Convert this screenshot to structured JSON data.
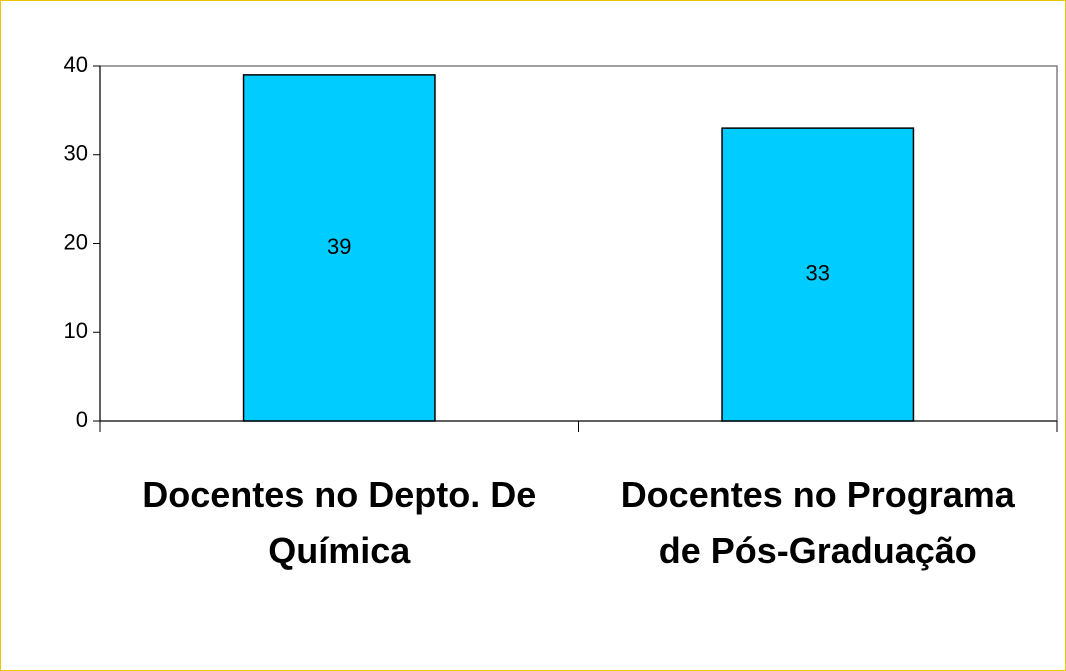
{
  "chart_data": {
    "type": "bar",
    "categories": [
      "Docentes no Depto. De Química",
      "Docentes no Programa de Pós-Graduação"
    ],
    "values": [
      39,
      33
    ],
    "color": "#00ccff",
    "ylim": [
      0,
      40
    ],
    "yticks": [
      0,
      10,
      20,
      30,
      40
    ],
    "grid": false
  }
}
